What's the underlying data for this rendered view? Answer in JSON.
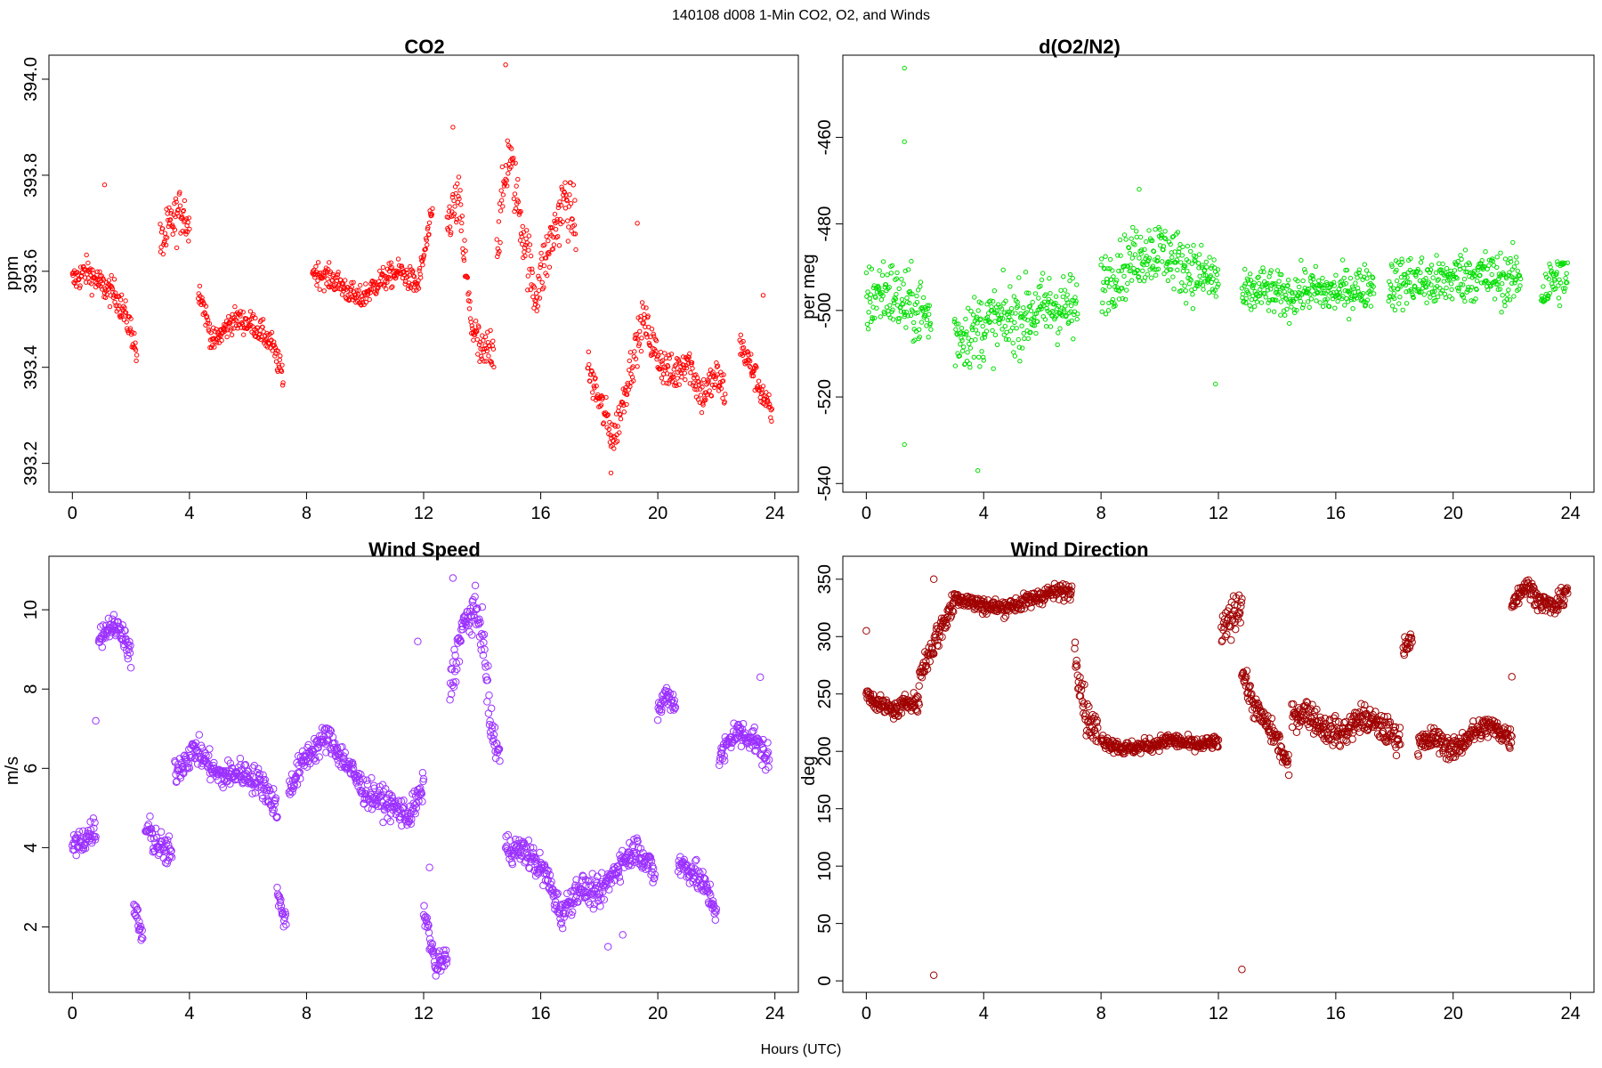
{
  "figure": {
    "title": "140108   d008   1-Min CO2, O2, and Winds",
    "xlabel": "Hours (UTC)"
  },
  "chart_data": [
    {
      "id": "co2",
      "type": "scatter",
      "title": "CO2",
      "xlabel": "",
      "ylabel": "ppm",
      "color": "#ff0000",
      "marker_scale": 1.0,
      "xlim": [
        -0.8,
        24.8
      ],
      "ylim": [
        393.14,
        394.05
      ],
      "xticks": [
        0,
        4,
        8,
        12,
        16,
        20,
        24
      ],
      "yticks": [
        393.2,
        393.4,
        393.6,
        393.8,
        394.0
      ],
      "ytick_labels": [
        "393.2",
        "393.4",
        "393.6",
        "393.8",
        "394.0"
      ],
      "segments": [
        {
          "x": [
            0.0,
            0.5,
            1.0,
            1.5,
            2.0,
            2.2
          ],
          "y": [
            393.58,
            393.6,
            393.57,
            393.55,
            393.48,
            393.43
          ],
          "spread": 0.03
        },
        {
          "x": [
            3.0,
            3.4,
            3.8,
            4.0
          ],
          "y": [
            393.65,
            393.7,
            393.73,
            393.68
          ],
          "spread": 0.05
        },
        {
          "x": [
            4.3,
            4.8,
            5.5,
            6.2,
            6.8,
            7.2
          ],
          "y": [
            393.57,
            393.45,
            393.5,
            393.49,
            393.45,
            393.38
          ],
          "spread": 0.025
        },
        {
          "x": [
            8.2,
            9.0,
            9.8,
            10.5,
            11.2,
            11.8,
            12.3
          ],
          "y": [
            393.6,
            393.58,
            393.54,
            393.58,
            393.6,
            393.57,
            393.72
          ],
          "spread": 0.025
        },
        {
          "x": [
            12.8,
            13.2,
            13.6,
            14.0,
            14.4
          ],
          "y": [
            393.7,
            393.75,
            393.5,
            393.42,
            393.45
          ],
          "spread": 0.05
        },
        {
          "x": [
            14.5,
            14.9,
            15.4,
            15.8,
            16.3,
            16.8,
            17.2
          ],
          "y": [
            393.65,
            393.85,
            393.68,
            393.55,
            393.65,
            393.75,
            393.7
          ],
          "spread": 0.06
        },
        {
          "x": [
            17.6,
            18.0,
            18.5,
            19.0,
            19.5,
            20.0,
            20.5,
            21.0,
            21.5,
            22.0,
            22.3
          ],
          "y": [
            393.4,
            393.33,
            393.25,
            393.38,
            393.5,
            393.42,
            393.38,
            393.42,
            393.34,
            393.38,
            393.35
          ],
          "spread": 0.04
        },
        {
          "x": [
            22.8,
            23.2,
            23.6,
            23.9
          ],
          "y": [
            393.45,
            393.4,
            393.34,
            393.3
          ],
          "spread": 0.03
        }
      ],
      "outliers": [
        [
          1.1,
          393.78
        ],
        [
          14.8,
          394.03
        ],
        [
          19.3,
          393.7
        ],
        [
          23.6,
          393.55
        ],
        [
          13.0,
          393.9
        ],
        [
          18.4,
          393.18
        ]
      ]
    },
    {
      "id": "o2",
      "type": "scatter",
      "title": "d(O2/N2)",
      "xlabel": "",
      "ylabel": "per meg",
      "color": "#00dd00",
      "marker_scale": 1.0,
      "xlim": [
        -0.8,
        24.8
      ],
      "ylim": [
        -542,
        -441
      ],
      "xticks": [
        0,
        4,
        8,
        12,
        16,
        20,
        24
      ],
      "yticks": [
        -540,
        -520,
        -500,
        -480,
        -460
      ],
      "ytick_labels": [
        "-540",
        "-520",
        "-500",
        "-480",
        "-460"
      ],
      "segments": [
        {
          "x": [
            0.0,
            0.6,
            1.2,
            1.8,
            2.2
          ],
          "y": [
            -498,
            -495,
            -498,
            -500,
            -502
          ],
          "spread": 8
        },
        {
          "x": [
            3.0,
            3.6,
            4.2,
            5.0,
            5.8,
            6.5,
            7.2
          ],
          "y": [
            -506,
            -505,
            -503,
            -502,
            -500,
            -499,
            -500
          ],
          "spread": 8
        },
        {
          "x": [
            8.0,
            8.6,
            9.3,
            10.0,
            10.7,
            11.4,
            12.0
          ],
          "y": [
            -494,
            -491,
            -487,
            -486,
            -489,
            -492,
            -493
          ],
          "spread": 7
        },
        {
          "x": [
            12.8,
            13.5,
            14.3,
            15.0,
            15.8,
            16.6,
            17.3
          ],
          "y": [
            -497,
            -495,
            -497,
            -495,
            -496,
            -495,
            -494
          ],
          "spread": 5
        },
        {
          "x": [
            17.8,
            18.6,
            19.4,
            20.2,
            21.0,
            21.8,
            22.3
          ],
          "y": [
            -494,
            -493,
            -494,
            -492,
            -492,
            -493,
            -492
          ],
          "spread": 6
        },
        {
          "x": [
            23.0,
            23.4,
            23.9
          ],
          "y": [
            -496,
            -493,
            -492
          ],
          "spread": 6
        }
      ],
      "outliers": [
        [
          1.3,
          -444
        ],
        [
          1.3,
          -461
        ],
        [
          1.3,
          -531
        ],
        [
          3.8,
          -537
        ],
        [
          11.9,
          -517
        ],
        [
          9.3,
          -472
        ]
      ]
    },
    {
      "id": "ws",
      "type": "scatter",
      "title": "Wind Speed",
      "xlabel": "",
      "ylabel": "m/s",
      "color": "#9b30ff",
      "marker_scale": 1.7,
      "xlim": [
        -0.8,
        24.8
      ],
      "ylim": [
        0.35,
        11.35
      ],
      "xticks": [
        0,
        4,
        8,
        12,
        16,
        20,
        24
      ],
      "yticks": [
        2,
        4,
        6,
        8,
        10
      ],
      "ytick_labels": [
        "2",
        "4",
        "6",
        "8",
        "10"
      ],
      "segments": [
        {
          "x": [
            0.0,
            0.4,
            0.8
          ],
          "y": [
            4.0,
            4.2,
            4.5
          ],
          "spread": 0.35
        },
        {
          "x": [
            0.9,
            1.3,
            1.7,
            2.0
          ],
          "y": [
            9.3,
            9.6,
            9.5,
            8.8
          ],
          "spread": 0.3
        },
        {
          "x": [
            2.1,
            2.4
          ],
          "y": [
            2.5,
            1.7
          ],
          "spread": 0.35
        },
        {
          "x": [
            2.5,
            3.0,
            3.4
          ],
          "y": [
            4.5,
            4.0,
            3.8
          ],
          "spread": 0.4
        },
        {
          "x": [
            3.5,
            4.2,
            5.0,
            5.8,
            6.5,
            7.0
          ],
          "y": [
            5.9,
            6.5,
            5.8,
            5.9,
            5.6,
            5.0
          ],
          "spread": 0.35
        },
        {
          "x": [
            7.0,
            7.3
          ],
          "y": [
            2.8,
            2.1
          ],
          "spread": 0.3
        },
        {
          "x": [
            7.4,
            8.0,
            8.7,
            9.3,
            10.0,
            10.8,
            11.5,
            12.0
          ],
          "y": [
            5.5,
            6.3,
            6.8,
            6.2,
            5.4,
            5.1,
            4.8,
            5.5
          ],
          "spread": 0.35
        },
        {
          "x": [
            12.0,
            12.4,
            12.8
          ],
          "y": [
            2.5,
            1.0,
            1.2
          ],
          "spread": 0.3
        },
        {
          "x": [
            12.9,
            13.3,
            13.7,
            14.0,
            14.3,
            14.6
          ],
          "y": [
            8.0,
            9.5,
            10.0,
            9.5,
            7.0,
            6.3
          ],
          "spread": 0.5
        },
        {
          "x": [
            14.8,
            15.5,
            16.2,
            16.7,
            17.3,
            18.0,
            18.7,
            19.3,
            19.9
          ],
          "y": [
            4.0,
            3.9,
            3.3,
            2.3,
            3.0,
            2.8,
            3.6,
            4.0,
            3.3
          ],
          "spread": 0.35
        },
        {
          "x": [
            20.0,
            20.3,
            20.6
          ],
          "y": [
            7.4,
            7.9,
            7.6
          ],
          "spread": 0.3
        },
        {
          "x": [
            20.7,
            21.2,
            21.7,
            22.0
          ],
          "y": [
            3.6,
            3.4,
            2.9,
            2.4
          ],
          "spread": 0.35
        },
        {
          "x": [
            22.1,
            22.6,
            23.2,
            23.8
          ],
          "y": [
            6.2,
            6.9,
            6.8,
            6.2
          ],
          "spread": 0.35
        }
      ],
      "outliers": [
        [
          0.8,
          7.2
        ],
        [
          11.8,
          9.2
        ],
        [
          12.2,
          3.5
        ],
        [
          13.0,
          10.8
        ],
        [
          18.3,
          1.5
        ],
        [
          18.8,
          1.8
        ],
        [
          23.5,
          8.3
        ]
      ]
    },
    {
      "id": "wd",
      "type": "scatter",
      "title": "Wind Direction",
      "xlabel": "",
      "ylabel": "deg",
      "color": "#a00000",
      "marker_scale": 1.7,
      "xlim": [
        -0.8,
        24.8
      ],
      "ylim": [
        -10,
        370
      ],
      "xticks": [
        0,
        4,
        8,
        12,
        16,
        20,
        24
      ],
      "yticks": [
        0,
        50,
        100,
        150,
        200,
        250,
        300,
        350
      ],
      "ytick_labels": [
        "0",
        "50",
        "100",
        "150",
        "200",
        "250",
        "300",
        "350"
      ],
      "segments": [
        {
          "x": [
            0.0,
            0.5,
            1.0,
            1.5,
            1.8
          ],
          "y": [
            250,
            240,
            235,
            245,
            240
          ],
          "spread": 7
        },
        {
          "x": [
            1.8,
            2.4,
            3.0
          ],
          "y": [
            265,
            300,
            330
          ],
          "spread": 12
        },
        {
          "x": [
            3.0,
            3.8,
            4.6,
            5.4,
            6.2,
            7.0
          ],
          "y": [
            335,
            328,
            325,
            330,
            338,
            340
          ],
          "spread": 7
        },
        {
          "x": [
            7.1,
            7.5,
            7.9
          ],
          "y": [
            290,
            230,
            215
          ],
          "spread": 15
        },
        {
          "x": [
            8.0,
            8.8,
            9.6,
            10.4,
            11.2,
            12.0
          ],
          "y": [
            210,
            202,
            205,
            210,
            205,
            208
          ],
          "spread": 6
        },
        {
          "x": [
            12.1,
            12.5,
            12.8
          ],
          "y": [
            300,
            320,
            330
          ],
          "spread": 15
        },
        {
          "x": [
            12.8,
            13.2,
            13.6,
            14.0,
            14.4
          ],
          "y": [
            270,
            240,
            225,
            210,
            185
          ],
          "spread": 10
        },
        {
          "x": [
            14.5,
            15.0,
            15.6,
            16.2,
            16.9,
            17.6,
            18.2
          ],
          "y": [
            230,
            235,
            220,
            215,
            230,
            220,
            210
          ],
          "spread": 12
        },
        {
          "x": [
            18.3,
            18.6
          ],
          "y": [
            290,
            300
          ],
          "spread": 8
        },
        {
          "x": [
            18.8,
            19.4,
            20.0,
            20.6,
            21.2,
            21.8,
            22.0
          ],
          "y": [
            205,
            212,
            200,
            215,
            222,
            215,
            210
          ],
          "spread": 10
        },
        {
          "x": [
            22.0,
            22.5,
            23.0,
            23.5,
            23.9
          ],
          "y": [
            330,
            345,
            330,
            325,
            342
          ],
          "spread": 8
        }
      ],
      "outliers": [
        [
          2.3,
          5
        ],
        [
          12.8,
          10
        ],
        [
          2.3,
          350
        ],
        [
          0.0,
          305
        ],
        [
          22.0,
          265
        ]
      ]
    }
  ]
}
